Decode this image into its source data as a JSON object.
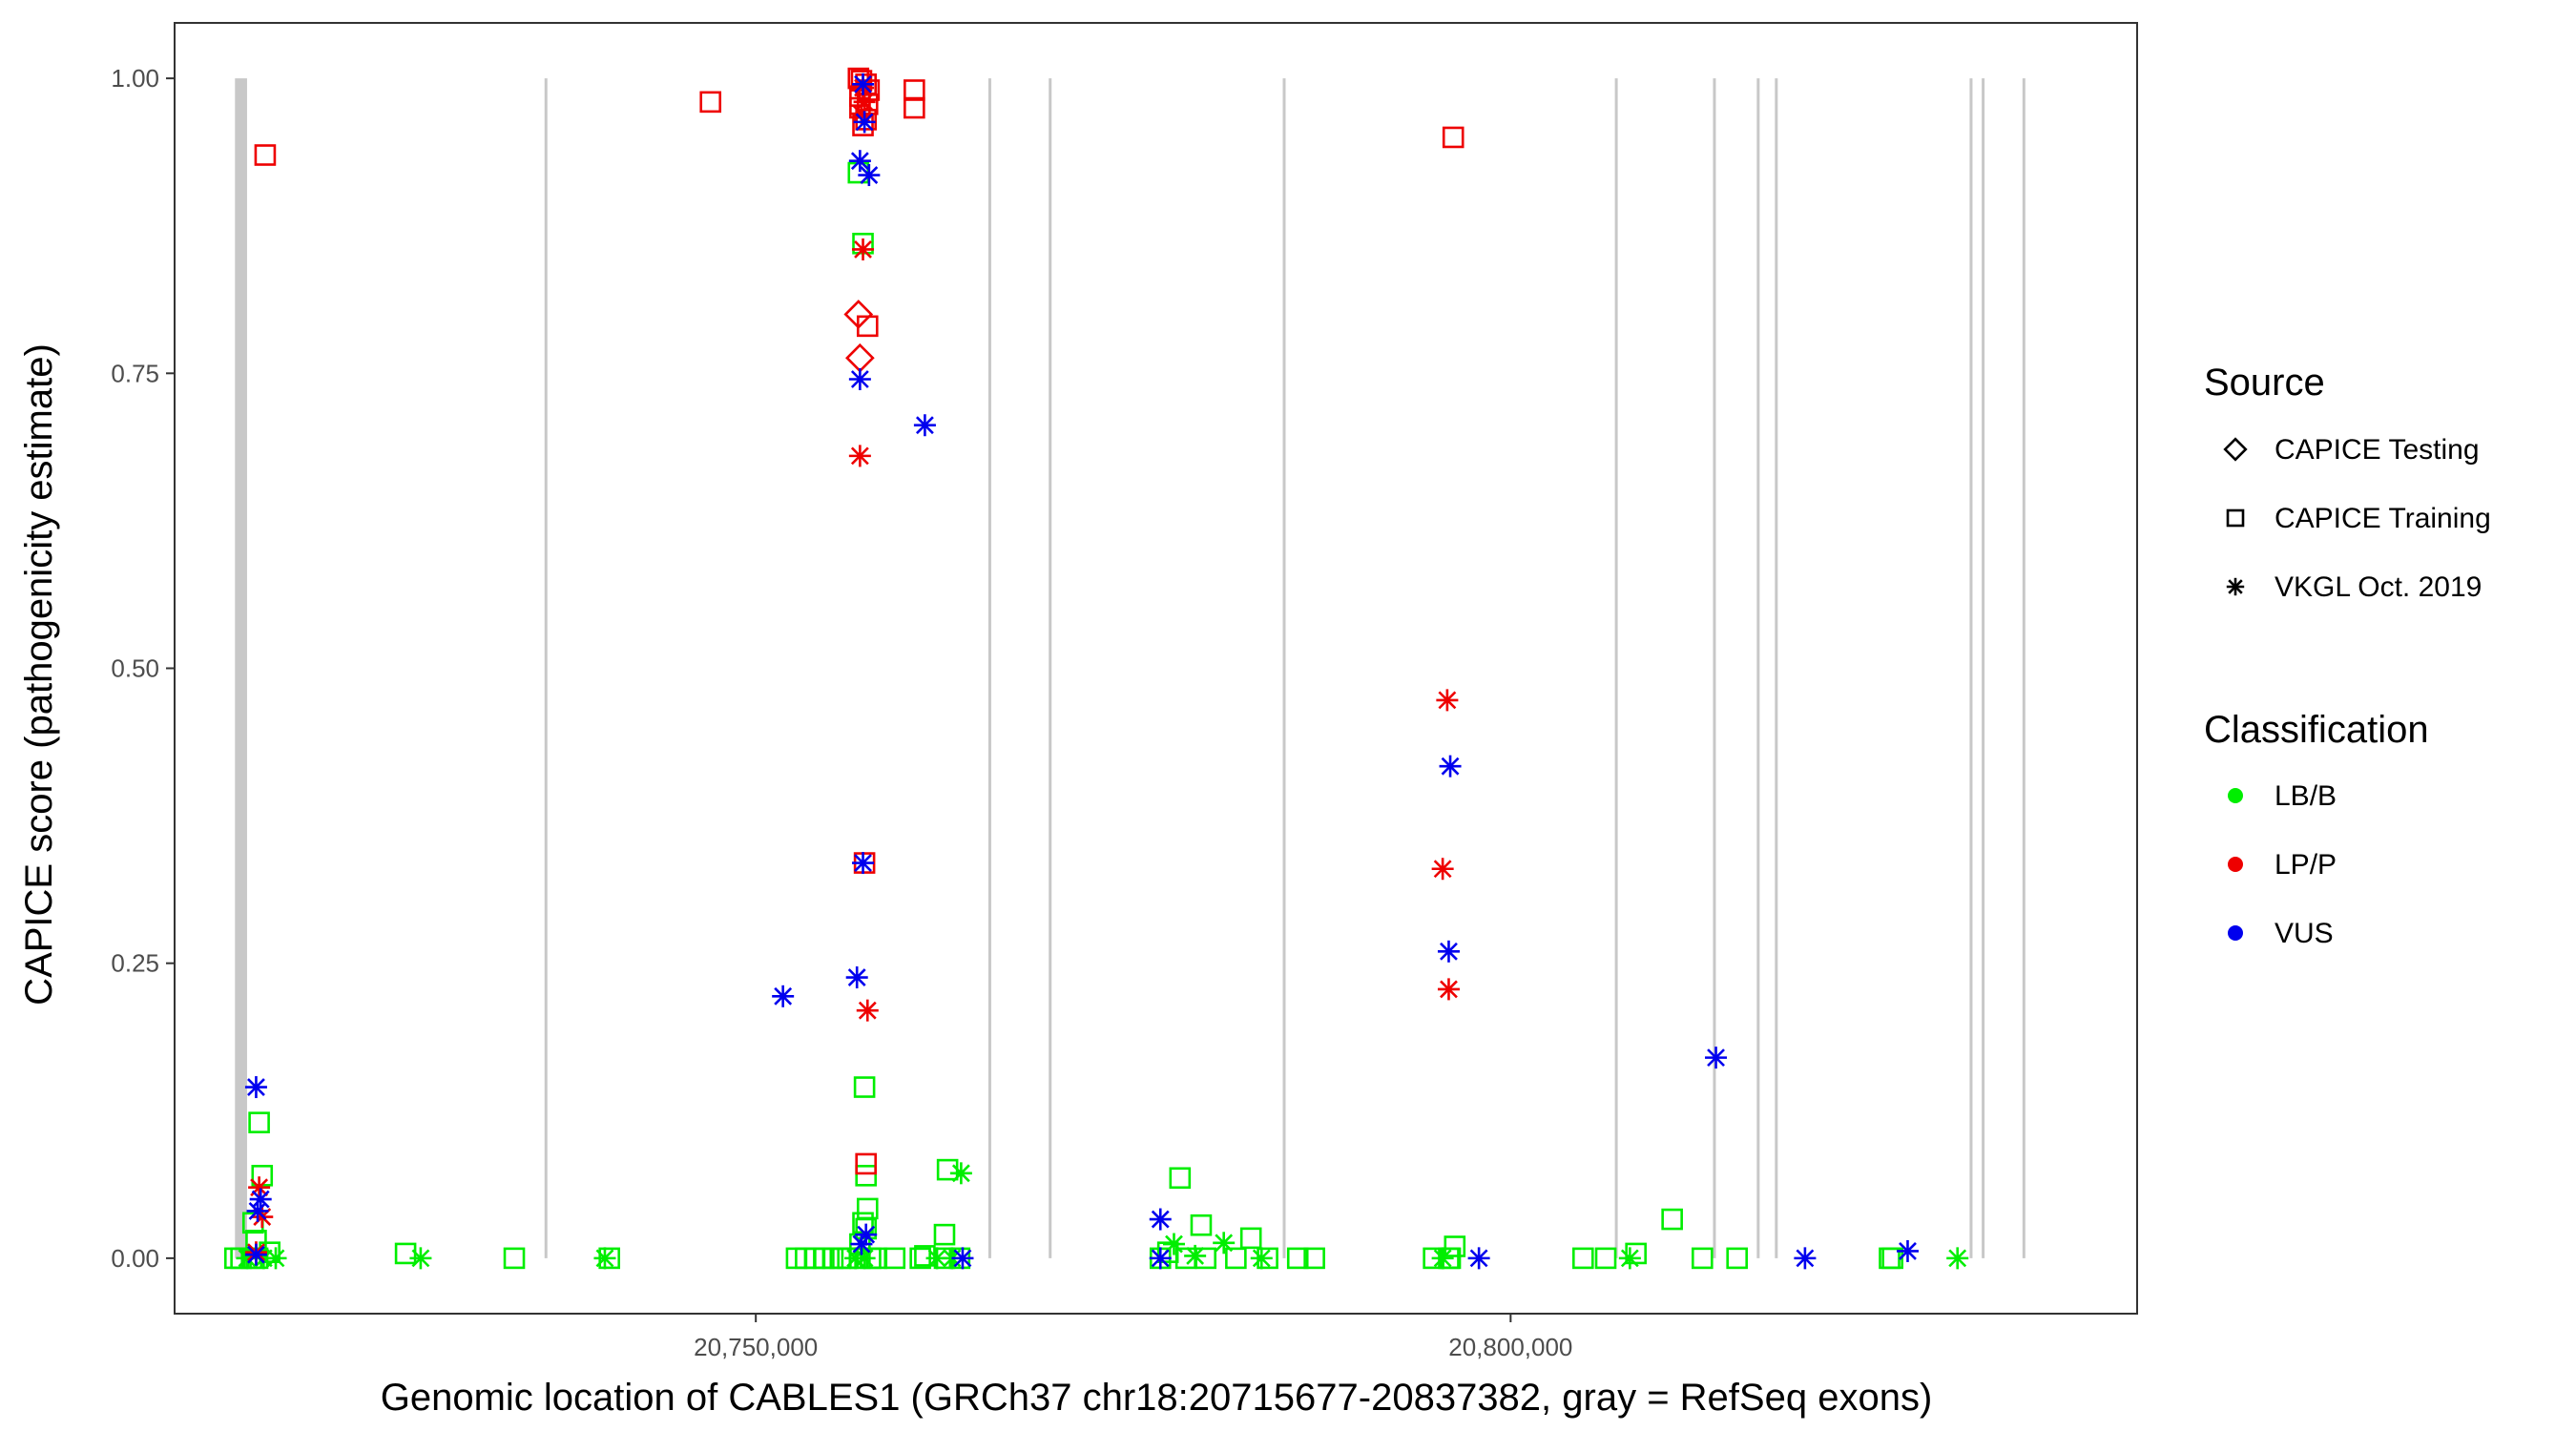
{
  "chart_data": {
    "type": "scatter",
    "xlabel": "Genomic location of CABLES1 (GRCh37 chr18:20715677-20837382, gray = RefSeq exons)",
    "ylabel": "CAPICE score (pathogenicity estimate)",
    "xlim": [
      20711500,
      20841500
    ],
    "ylim": [
      -0.047,
      1.047
    ],
    "x_ticks": [
      20750000,
      20800000
    ],
    "x_tick_labels": [
      "20,750,000",
      "20,800,000"
    ],
    "y_ticks": [
      0,
      0.25,
      0.5,
      0.75,
      1
    ],
    "y_tick_labels": [
      "0.00",
      "0.25",
      "0.50",
      "0.75",
      "1.00"
    ],
    "grid": false,
    "exons": [
      [
        20715500,
        20716300
      ],
      20736100,
      20765500,
      20769500,
      20785000,
      20807000,
      20813500,
      20816400,
      20817600,
      20830500,
      20831300,
      20834000
    ],
    "legends": [
      {
        "title": "Source",
        "items": [
          {
            "label": "CAPICE Testing",
            "marker": "diamond"
          },
          {
            "label": "CAPICE Training",
            "marker": "square"
          },
          {
            "label": "VKGL Oct. 2019",
            "marker": "asterisk"
          }
        ]
      },
      {
        "title": "Classification",
        "items": [
          {
            "label": "LB/B",
            "color": "#00ee00"
          },
          {
            "label": "LP/P",
            "color": "#ee0000"
          },
          {
            "label": "VUS",
            "color": "#0000ee"
          }
        ]
      }
    ],
    "colors": {
      "LB/B": "#00ee00",
      "LP/P": "#ee0000",
      "VUS": "#0000ee",
      "exon": "#c8c8c8"
    },
    "series": [
      {
        "name": "LB/B",
        "points": [
          [
            20715500,
            0,
            "square"
          ],
          [
            20715900,
            0,
            "square"
          ],
          [
            20716300,
            0,
            "asterisk"
          ],
          [
            20716600,
            0,
            "square"
          ],
          [
            20717000,
            0,
            "square"
          ],
          [
            20717400,
            0,
            "asterisk"
          ],
          [
            20717800,
            0.005,
            "square"
          ],
          [
            20716900,
            0.015,
            "square"
          ],
          [
            20717100,
            0.115,
            "square"
          ],
          [
            20717300,
            0.07,
            "square"
          ],
          [
            20718200,
            0,
            "asterisk"
          ],
          [
            20716700,
            0.03,
            "square"
          ],
          [
            20726800,
            0.004,
            "square"
          ],
          [
            20727800,
            0,
            "asterisk"
          ],
          [
            20734000,
            0,
            "square"
          ],
          [
            20740000,
            0,
            "asterisk"
          ],
          [
            20740300,
            0,
            "square"
          ],
          [
            20752700,
            0,
            "square"
          ],
          [
            20753300,
            0,
            "square"
          ],
          [
            20753900,
            0,
            "square"
          ],
          [
            20754500,
            0,
            "square"
          ],
          [
            20755100,
            0,
            "square"
          ],
          [
            20755600,
            0,
            "square"
          ],
          [
            20756100,
            0,
            "square"
          ],
          [
            20756600,
            0,
            "asterisk"
          ],
          [
            20756900,
            0,
            "square"
          ],
          [
            20757200,
            0,
            "asterisk"
          ],
          [
            20757600,
            0,
            "square"
          ],
          [
            20758000,
            0,
            "square"
          ],
          [
            20756900,
            0.012,
            "square"
          ],
          [
            20757100,
            0.03,
            "square"
          ],
          [
            20757300,
            0.025,
            "square"
          ],
          [
            20757400,
            0.042,
            "square"
          ],
          [
            20757300,
            0.07,
            "square"
          ],
          [
            20757200,
            0.145,
            "square"
          ],
          [
            20756800,
            0.92,
            "square"
          ],
          [
            20757100,
            0.86,
            "square"
          ],
          [
            20759200,
            0,
            "square"
          ],
          [
            20760900,
            0,
            "square"
          ],
          [
            20761200,
            0.002,
            "square"
          ],
          [
            20762000,
            0,
            "asterisk"
          ],
          [
            20762500,
            0,
            "square"
          ],
          [
            20763000,
            0,
            "asterisk"
          ],
          [
            20763500,
            0,
            "square"
          ],
          [
            20762500,
            0.02,
            "square"
          ],
          [
            20762700,
            0.075,
            "square"
          ],
          [
            20763600,
            0.072,
            "asterisk"
          ],
          [
            20776800,
            0,
            "square"
          ],
          [
            20777300,
            0.005,
            "square"
          ],
          [
            20777700,
            0.012,
            "asterisk"
          ],
          [
            20778100,
            0.068,
            "square"
          ],
          [
            20778500,
            0,
            "square"
          ],
          [
            20779100,
            0.002,
            "asterisk"
          ],
          [
            20779500,
            0.028,
            "square"
          ],
          [
            20779800,
            0,
            "square"
          ],
          [
            20781000,
            0.013,
            "asterisk"
          ],
          [
            20781800,
            0,
            "square"
          ],
          [
            20782800,
            0.017,
            "square"
          ],
          [
            20783500,
            0,
            "asterisk"
          ],
          [
            20783900,
            0,
            "square"
          ],
          [
            20785900,
            0,
            "square"
          ],
          [
            20787000,
            0,
            "square"
          ],
          [
            20794900,
            0,
            "square"
          ],
          [
            20795500,
            0,
            "asterisk"
          ],
          [
            20795900,
            0,
            "square"
          ],
          [
            20796300,
            0.01,
            "square"
          ],
          [
            20796000,
            0,
            "square"
          ],
          [
            20804800,
            0,
            "square"
          ],
          [
            20806300,
            0,
            "square"
          ],
          [
            20807900,
            0,
            "asterisk"
          ],
          [
            20808300,
            0.004,
            "square"
          ],
          [
            20810700,
            0.033,
            "square"
          ],
          [
            20812700,
            0,
            "square"
          ],
          [
            20815000,
            0,
            "square"
          ],
          [
            20825100,
            0,
            "square"
          ],
          [
            20825300,
            0,
            "square"
          ],
          [
            20829600,
            0,
            "asterisk"
          ]
        ]
      },
      {
        "name": "LP/P",
        "points": [
          [
            20717500,
            0.935,
            "square"
          ],
          [
            20717100,
            0.06,
            "asterisk"
          ],
          [
            20717300,
            0.035,
            "asterisk"
          ],
          [
            20716900,
            0.005,
            "asterisk"
          ],
          [
            20756800,
            1.0,
            "square"
          ],
          [
            20757000,
            0.998,
            "square"
          ],
          [
            20757300,
            0.995,
            "square"
          ],
          [
            20757500,
            0.99,
            "square"
          ],
          [
            20757100,
            0.992,
            "asterisk"
          ],
          [
            20756900,
            0.985,
            "square"
          ],
          [
            20757200,
            0.98,
            "asterisk"
          ],
          [
            20757400,
            0.978,
            "square"
          ],
          [
            20757000,
            0.97,
            "asterisk"
          ],
          [
            20757300,
            0.965,
            "square"
          ],
          [
            20756900,
            0.975,
            "square"
          ],
          [
            20757100,
            0.96,
            "square"
          ],
          [
            20760500,
            0.99,
            "square"
          ],
          [
            20760500,
            0.975,
            "square"
          ],
          [
            20747000,
            0.98,
            "square"
          ],
          [
            20757100,
            0.855,
            "asterisk"
          ],
          [
            20757400,
            0.79,
            "square"
          ],
          [
            20756800,
            0.8,
            "diamond"
          ],
          [
            20756900,
            0.763,
            "diamond"
          ],
          [
            20756900,
            0.68,
            "asterisk"
          ],
          [
            20757200,
            0.335,
            "square"
          ],
          [
            20757400,
            0.21,
            "asterisk"
          ],
          [
            20757300,
            0.08,
            "square"
          ],
          [
            20796200,
            0.95,
            "square"
          ],
          [
            20795800,
            0.473,
            "asterisk"
          ],
          [
            20795500,
            0.33,
            "asterisk"
          ],
          [
            20795900,
            0.228,
            "asterisk"
          ]
        ]
      },
      {
        "name": "VUS",
        "points": [
          [
            20716900,
            0.145,
            "asterisk"
          ],
          [
            20717200,
            0.05,
            "asterisk"
          ],
          [
            20717000,
            0.04,
            "asterisk"
          ],
          [
            20716900,
            0.003,
            "asterisk"
          ],
          [
            20757100,
            0.995,
            "asterisk"
          ],
          [
            20756900,
            0.93,
            "asterisk"
          ],
          [
            20757500,
            0.918,
            "asterisk"
          ],
          [
            20757200,
            0.963,
            "asterisk"
          ],
          [
            20756900,
            0.745,
            "asterisk"
          ],
          [
            20761200,
            0.706,
            "asterisk"
          ],
          [
            20757100,
            0.335,
            "asterisk"
          ],
          [
            20756700,
            0.238,
            "asterisk"
          ],
          [
            20751800,
            0.222,
            "asterisk"
          ],
          [
            20757300,
            0.02,
            "asterisk"
          ],
          [
            20757000,
            0.012,
            "asterisk"
          ],
          [
            20763700,
            0,
            "asterisk"
          ],
          [
            20776800,
            0.033,
            "asterisk"
          ],
          [
            20776800,
            0,
            "asterisk"
          ],
          [
            20796000,
            0.417,
            "asterisk"
          ],
          [
            20795900,
            0.26,
            "asterisk"
          ],
          [
            20797900,
            0,
            "asterisk"
          ],
          [
            20813600,
            0.17,
            "asterisk"
          ],
          [
            20819500,
            0,
            "asterisk"
          ],
          [
            20826300,
            0.006,
            "asterisk"
          ]
        ]
      }
    ]
  }
}
